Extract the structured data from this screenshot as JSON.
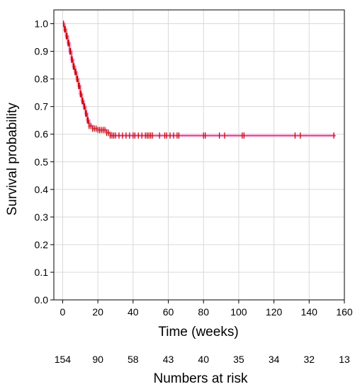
{
  "chart_data": {
    "type": "line",
    "title": "",
    "xlabel": "Time (weeks)",
    "ylabel": "Survival probability",
    "xlim": [
      -5,
      160
    ],
    "ylim": [
      0,
      1.05
    ],
    "x_ticks": [
      0,
      20,
      40,
      60,
      80,
      100,
      120,
      140,
      160
    ],
    "y_ticks": [
      "0.0",
      "0.1",
      "0.2",
      "0.3",
      "0.4",
      "0.5",
      "0.6",
      "0.7",
      "0.8",
      "0.9",
      "1.0"
    ],
    "grid": true,
    "legend": "none",
    "colors": {
      "line": "#e23a2e",
      "marker": "#c40000",
      "halo": "#f3a5e0"
    },
    "series": [
      {
        "steps": [
          [
            0,
            1.0
          ],
          [
            1,
            0.98
          ],
          [
            2,
            0.955
          ],
          [
            3,
            0.93
          ],
          [
            4,
            0.9
          ],
          [
            5,
            0.87
          ],
          [
            6,
            0.845
          ],
          [
            7,
            0.825
          ],
          [
            8,
            0.8
          ],
          [
            9,
            0.775
          ],
          [
            10,
            0.745
          ],
          [
            11,
            0.72
          ],
          [
            12,
            0.7
          ],
          [
            13,
            0.675
          ],
          [
            14,
            0.65
          ],
          [
            15,
            0.63
          ],
          [
            17,
            0.62
          ],
          [
            20,
            0.615
          ],
          [
            25,
            0.605
          ],
          [
            27,
            0.595
          ],
          [
            155,
            0.595
          ]
        ],
        "censor_x": [
          0.5,
          1,
          1.5,
          2,
          2.5,
          3,
          3.5,
          4,
          4.5,
          5,
          5.5,
          6,
          6.5,
          7,
          7.5,
          8,
          8.5,
          9,
          9.5,
          10,
          10.5,
          11,
          11.5,
          12,
          12.5,
          13,
          13.5,
          14,
          14.5,
          15,
          16,
          17,
          18,
          19,
          20,
          21,
          22,
          23,
          24,
          25,
          26,
          27,
          28,
          29,
          30,
          32,
          34,
          36,
          38,
          40,
          41,
          43,
          45,
          47,
          48,
          49,
          50,
          51,
          55,
          58,
          59,
          61,
          63,
          65,
          66,
          80,
          81,
          89,
          92,
          102,
          103,
          132,
          135,
          154
        ]
      }
    ],
    "numbers_at_risk_label": "Numbers at risk",
    "numbers_at_risk": [
      "154",
      "90",
      "58",
      "43",
      "40",
      "35",
      "34",
      "32",
      "13"
    ]
  }
}
